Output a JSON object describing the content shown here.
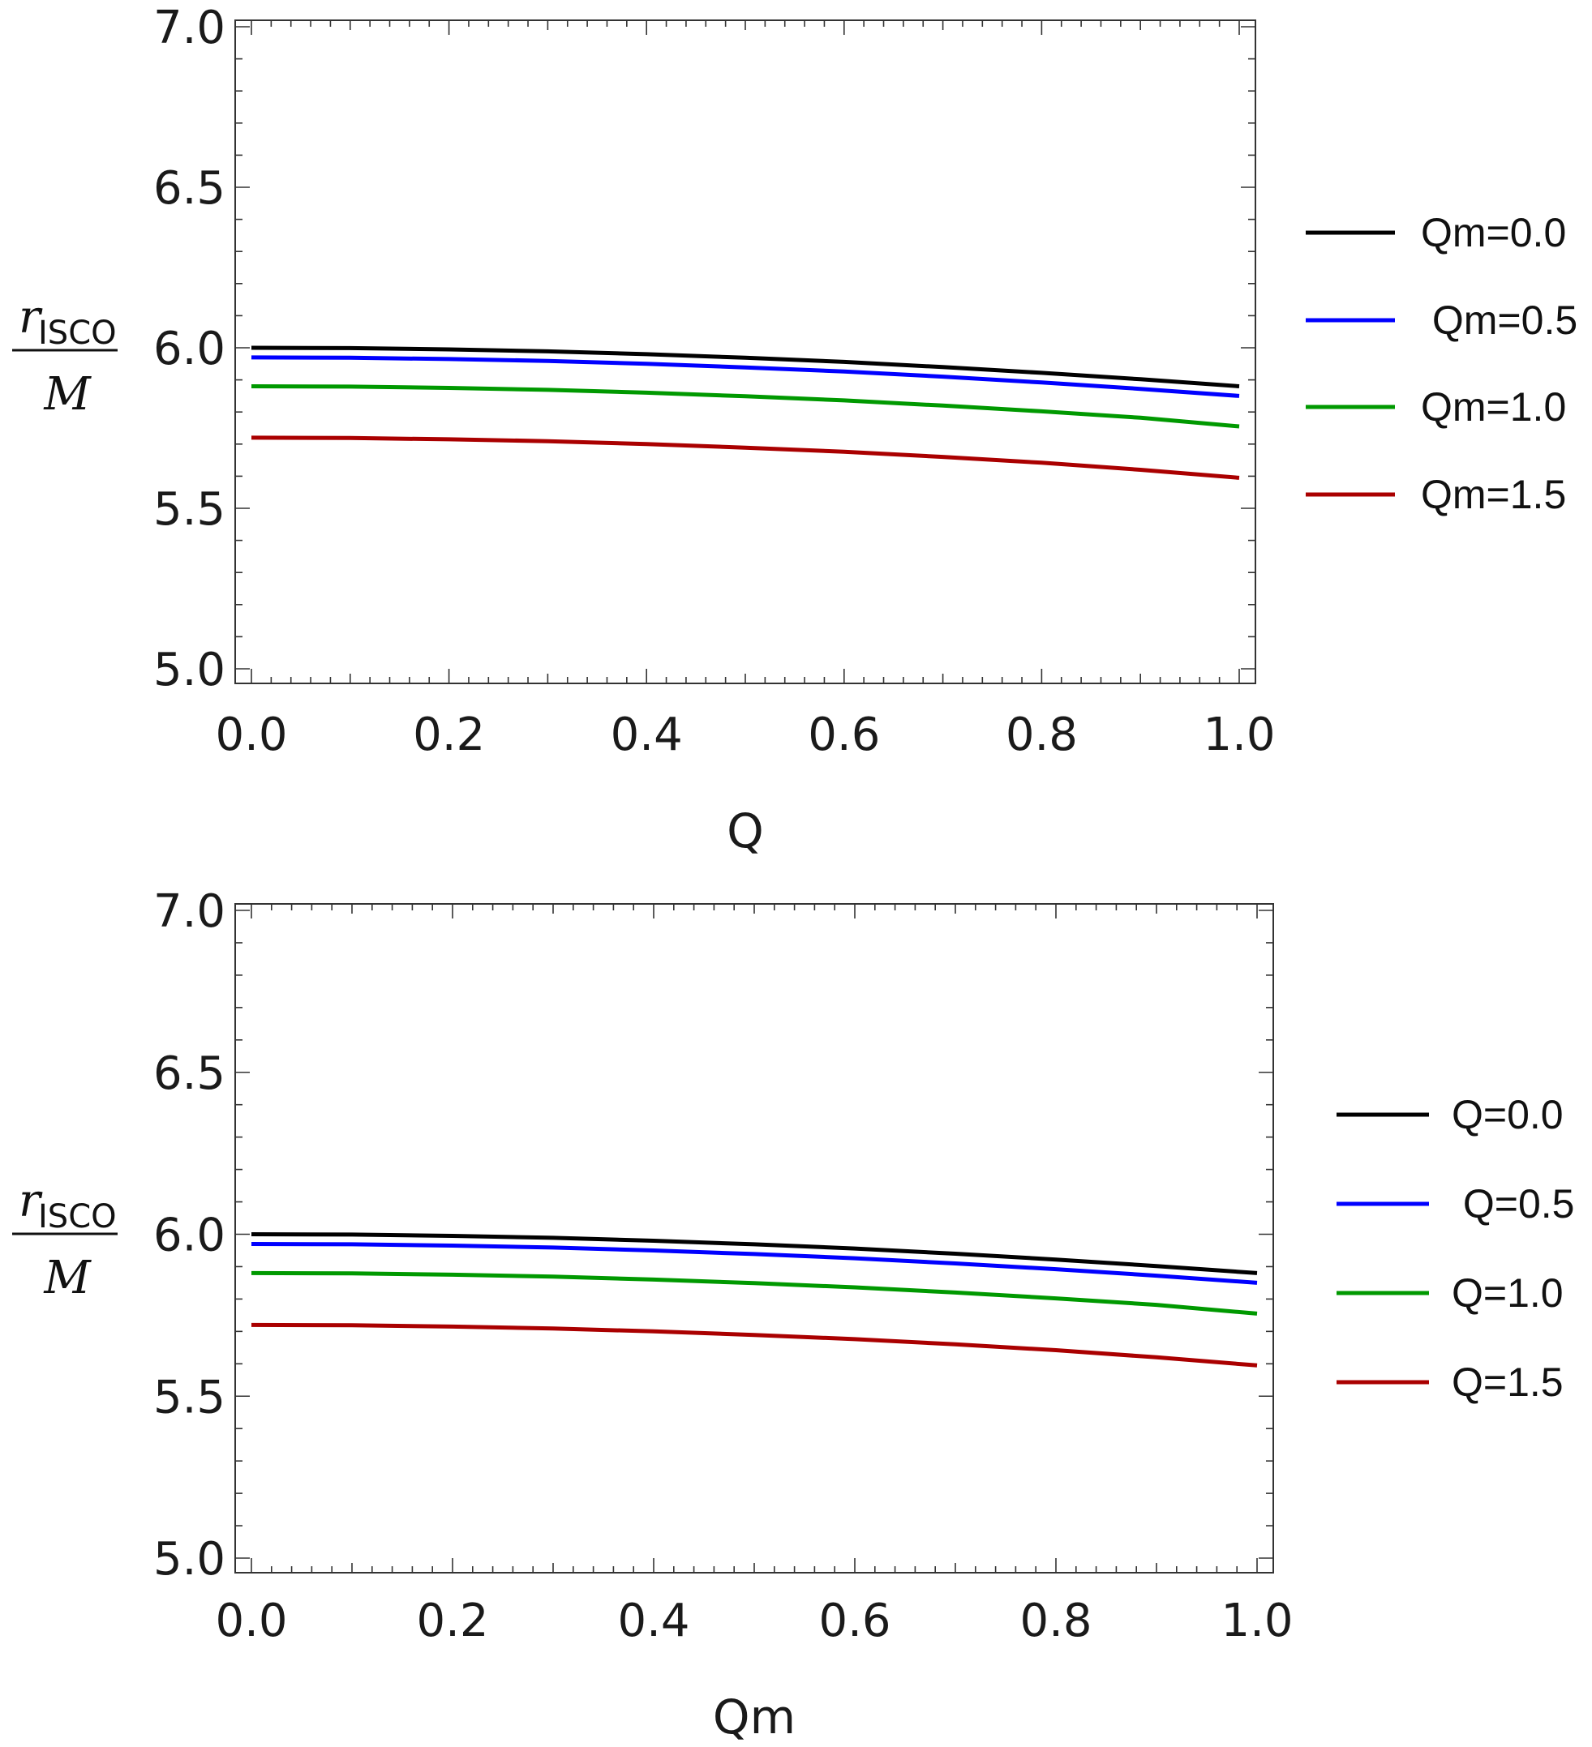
{
  "chart_data": [
    {
      "type": "line",
      "xlabel": "Q",
      "ylabel": {
        "main": "r",
        "sub": "ISCO",
        "den": "M"
      },
      "xlim": [
        0,
        1
      ],
      "ylim": [
        5.0,
        7.0
      ],
      "xticks": [
        "0.0",
        "0.2",
        "0.4",
        "0.6",
        "0.8",
        "1.0"
      ],
      "yticks": [
        "5.0",
        "5.5",
        "6.0",
        "6.5",
        "7.0"
      ],
      "legend_position": "right",
      "x": [
        0.0,
        0.1,
        0.2,
        0.3,
        0.4,
        0.5,
        0.6,
        0.7,
        0.8,
        0.9,
        1.0
      ],
      "series": [
        {
          "name": "Qm=0.0",
          "color": "#000000",
          "values": [
            6.0,
            5.999,
            5.995,
            5.989,
            5.98,
            5.969,
            5.956,
            5.94,
            5.922,
            5.902,
            5.88
          ]
        },
        {
          "name": " Qm=0.5",
          "color": "#0000ff",
          "values": [
            5.97,
            5.969,
            5.965,
            5.959,
            5.95,
            5.939,
            5.926,
            5.91,
            5.892,
            5.872,
            5.85
          ]
        },
        {
          "name": "Qm=1.0",
          "color": "#009900",
          "values": [
            5.88,
            5.879,
            5.875,
            5.869,
            5.86,
            5.849,
            5.836,
            5.82,
            5.802,
            5.782,
            5.755
          ]
        },
        {
          "name": "Qm=1.5",
          "color": "#aa0000",
          "values": [
            5.72,
            5.719,
            5.715,
            5.709,
            5.7,
            5.689,
            5.676,
            5.66,
            5.642,
            5.62,
            5.595
          ]
        }
      ]
    },
    {
      "type": "line",
      "xlabel": "Qm",
      "ylabel": {
        "main": "r",
        "sub": "ISCO",
        "den": "M"
      },
      "xlim": [
        0,
        1
      ],
      "ylim": [
        5.0,
        7.0
      ],
      "xticks": [
        "0.0",
        "0.2",
        "0.4",
        "0.6",
        "0.8",
        "1.0"
      ],
      "yticks": [
        "5.0",
        "5.5",
        "6.0",
        "6.5",
        "7.0"
      ],
      "legend_position": "right",
      "x": [
        0.0,
        0.1,
        0.2,
        0.3,
        0.4,
        0.5,
        0.6,
        0.7,
        0.8,
        0.9,
        1.0
      ],
      "series": [
        {
          "name": "Q=0.0",
          "color": "#000000",
          "values": [
            6.0,
            5.999,
            5.995,
            5.989,
            5.98,
            5.969,
            5.956,
            5.94,
            5.922,
            5.902,
            5.88
          ]
        },
        {
          "name": " Q=0.5",
          "color": "#0000ff",
          "values": [
            5.97,
            5.969,
            5.965,
            5.959,
            5.95,
            5.939,
            5.926,
            5.91,
            5.892,
            5.872,
            5.85
          ]
        },
        {
          "name": "Q=1.0",
          "color": "#009900",
          "values": [
            5.88,
            5.879,
            5.875,
            5.869,
            5.86,
            5.849,
            5.836,
            5.82,
            5.802,
            5.782,
            5.755
          ]
        },
        {
          "name": "Q=1.5",
          "color": "#aa0000",
          "values": [
            5.72,
            5.719,
            5.715,
            5.709,
            5.7,
            5.689,
            5.676,
            5.66,
            5.642,
            5.62,
            5.595
          ]
        }
      ]
    }
  ]
}
